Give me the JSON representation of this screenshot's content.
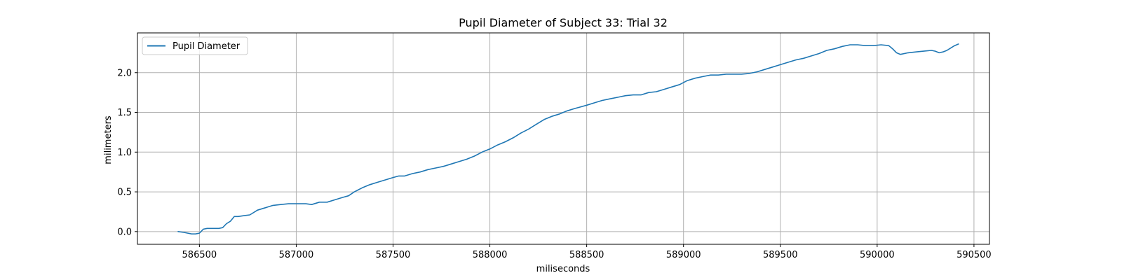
{
  "chart_data": {
    "type": "line",
    "title": "Pupil Diameter of Subject 33: Trial 32",
    "xlabel": "miliseconds",
    "ylabel": "milimeters",
    "xlim": [
      586180,
      590580
    ],
    "ylim": [
      -0.16,
      2.5
    ],
    "xticks": [
      586500,
      587000,
      587500,
      588000,
      588500,
      589000,
      589500,
      590000,
      590500
    ],
    "yticks": [
      0.0,
      0.5,
      1.0,
      1.5,
      2.0
    ],
    "xtick_labels": [
      "586500",
      "587000",
      "587500",
      "588000",
      "588500",
      "589000",
      "589500",
      "590000",
      "590500"
    ],
    "ytick_labels": [
      "0.0",
      "0.5",
      "1.0",
      "1.5",
      "2.0"
    ],
    "grid": true,
    "legend": {
      "position": "upper-left"
    },
    "colors": {
      "series": "#1f77b4"
    },
    "series": [
      {
        "name": "Pupil Diameter",
        "x": [
          586390,
          586420,
          586440,
          586460,
          586480,
          586500,
          586520,
          586540,
          586560,
          586580,
          586600,
          586620,
          586640,
          586660,
          586680,
          586700,
          586730,
          586760,
          586800,
          586840,
          586880,
          586920,
          586960,
          587000,
          587050,
          587080,
          587120,
          587160,
          587200,
          587240,
          587270,
          587300,
          587340,
          587380,
          587420,
          587460,
          587500,
          587530,
          587560,
          587600,
          587640,
          587680,
          587720,
          587760,
          587800,
          587840,
          587880,
          587920,
          587960,
          588000,
          588040,
          588080,
          588120,
          588160,
          588200,
          588240,
          588280,
          588320,
          588360,
          588400,
          588440,
          588470,
          588500,
          588540,
          588580,
          588620,
          588660,
          588700,
          588740,
          588780,
          588820,
          588860,
          588900,
          588940,
          588980,
          589020,
          589060,
          589100,
          589140,
          589180,
          589220,
          589260,
          589300,
          589340,
          589380,
          589420,
          589460,
          589500,
          589540,
          589580,
          589620,
          589660,
          589700,
          589740,
          589780,
          589820,
          589860,
          589900,
          589940,
          589980,
          590020,
          590060,
          590080,
          590100,
          590120,
          590160,
          590200,
          590240,
          590280,
          590300,
          590320,
          590340,
          590360,
          590380,
          590400,
          590420
        ],
        "y": [
          0.0,
          -0.01,
          -0.02,
          -0.03,
          -0.03,
          -0.02,
          0.03,
          0.04,
          0.04,
          0.04,
          0.04,
          0.05,
          0.1,
          0.13,
          0.19,
          0.19,
          0.2,
          0.21,
          0.27,
          0.3,
          0.33,
          0.34,
          0.35,
          0.35,
          0.35,
          0.34,
          0.37,
          0.37,
          0.4,
          0.43,
          0.45,
          0.5,
          0.55,
          0.59,
          0.62,
          0.65,
          0.68,
          0.7,
          0.7,
          0.73,
          0.75,
          0.78,
          0.8,
          0.82,
          0.85,
          0.88,
          0.91,
          0.95,
          1.0,
          1.04,
          1.09,
          1.13,
          1.18,
          1.24,
          1.29,
          1.35,
          1.41,
          1.45,
          1.48,
          1.52,
          1.55,
          1.57,
          1.59,
          1.62,
          1.65,
          1.67,
          1.69,
          1.71,
          1.72,
          1.72,
          1.75,
          1.76,
          1.79,
          1.82,
          1.85,
          1.9,
          1.93,
          1.95,
          1.97,
          1.97,
          1.98,
          1.98,
          1.98,
          1.99,
          2.01,
          2.04,
          2.07,
          2.1,
          2.13,
          2.16,
          2.18,
          2.21,
          2.24,
          2.28,
          2.3,
          2.33,
          2.35,
          2.35,
          2.34,
          2.34,
          2.35,
          2.34,
          2.3,
          2.25,
          2.23,
          2.25,
          2.26,
          2.27,
          2.28,
          2.27,
          2.25,
          2.26,
          2.28,
          2.31,
          2.34,
          2.36
        ]
      }
    ]
  }
}
